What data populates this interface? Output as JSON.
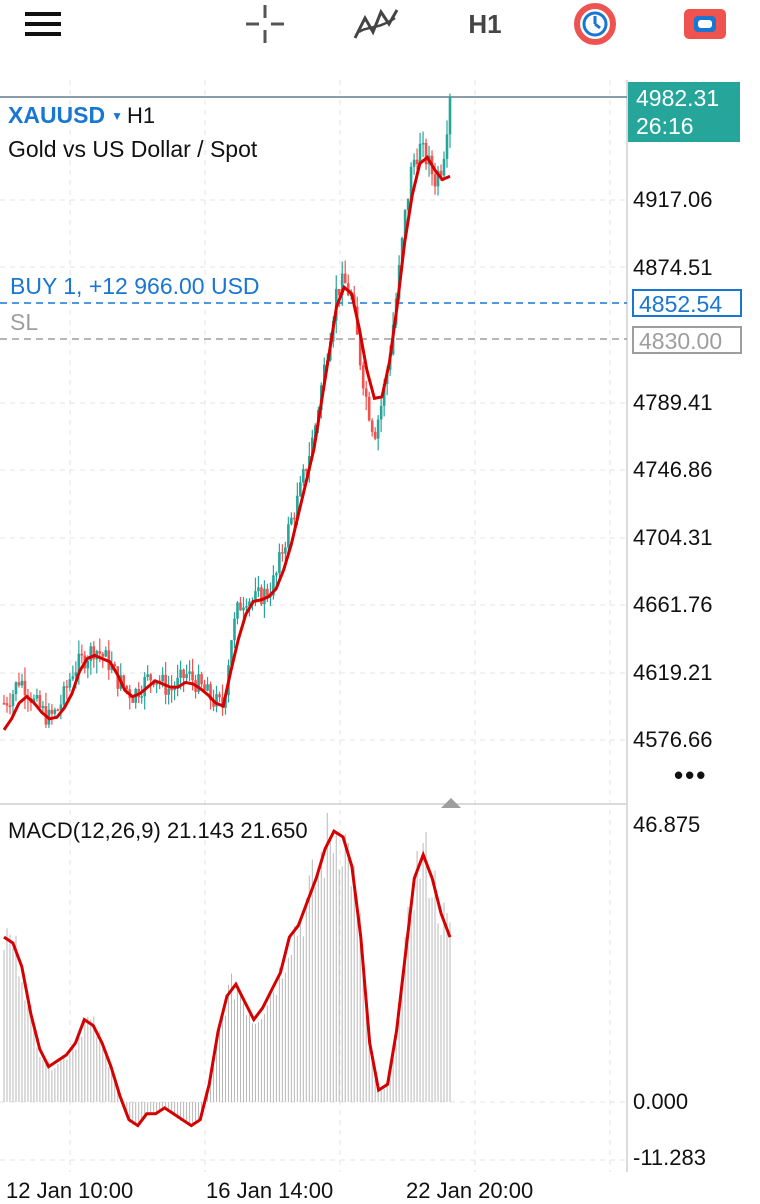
{
  "toolbar": {
    "menu_icon": "hamburger-menu-icon",
    "crosshair_icon": "crosshair-icon",
    "indicators_icon": "indicators-icon",
    "timeframe": "H1",
    "clock_icon": "timer-icon",
    "trade_icon": "trade-icon"
  },
  "header": {
    "symbol": "XAUUSD",
    "timeframe": "H1",
    "description": "Gold vs US Dollar / Spot"
  },
  "position": {
    "buy_label": "BUY 1,  +12 966.00 USD",
    "buy_price": "4852.54",
    "sl_label": "SL",
    "sl_price": "4830.00"
  },
  "current": {
    "price": "4982.31",
    "countdown": "26:16"
  },
  "price_axis": [
    "4917.06",
    "4874.51",
    "4789.41",
    "4746.86",
    "4704.31",
    "4661.76",
    "4619.21",
    "4576.66"
  ],
  "macd": {
    "title": "MACD(12,26,9) 21.143 21.650",
    "axis": [
      "46.875",
      "0.000",
      "-11.283"
    ]
  },
  "time_axis": [
    "12 Jan 10:00",
    "16 Jan 14:00",
    "22 Jan 20:00"
  ],
  "more_icon": "more-dots-icon",
  "colors": {
    "up": "#26a69a",
    "down": "#ef5350",
    "ma": "#d50000",
    "buy": "#1976d2",
    "sl": "#9e9e9e",
    "badge": "#26a69a"
  },
  "chart_data": {
    "type": "candlestick",
    "symbol": "XAUUSD",
    "interval": "H1",
    "ylim": [
      4550,
      4990
    ],
    "close_path": [
      4600,
      4605,
      4615,
      4610,
      4600,
      4595,
      4590,
      4595,
      4605,
      4620,
      4625,
      4630,
      4635,
      4630,
      4625,
      4615,
      4610,
      4605,
      4610,
      4615,
      4618,
      4612,
      4608,
      4612,
      4618,
      4615,
      4610,
      4605,
      4600,
      4598,
      4640,
      4660,
      4668,
      4664,
      4668,
      4670,
      4680,
      4700,
      4715,
      4730,
      4750,
      4770,
      4800,
      4830,
      4860,
      4865,
      4855,
      4820,
      4790,
      4770,
      4790,
      4820,
      4860,
      4905,
      4940,
      4950,
      4942,
      4930,
      4940,
      4982
    ],
    "ma_line": [
      4583,
      4590,
      4600,
      4604,
      4600,
      4594,
      4590,
      4591,
      4597,
      4606,
      4620,
      4628,
      4630,
      4628,
      4626,
      4618,
      4608,
      4604,
      4606,
      4610,
      4614,
      4612,
      4610,
      4610,
      4613,
      4612,
      4609,
      4605,
      4600,
      4598,
      4620,
      4640,
      4656,
      4664,
      4665,
      4667,
      4672,
      4684,
      4700,
      4720,
      4740,
      4760,
      4790,
      4820,
      4850,
      4862,
      4858,
      4836,
      4810,
      4792,
      4793,
      4815,
      4850,
      4890,
      4920,
      4940,
      4944,
      4936,
      4930,
      4932
    ],
    "macd_line": [
      28,
      27,
      23,
      15,
      9,
      6,
      7,
      8,
      10,
      14,
      13,
      10,
      6,
      1,
      -3,
      -4,
      -2,
      -2,
      -1,
      -2,
      -3,
      -4,
      -3,
      3,
      12,
      18,
      20,
      17,
      14,
      16,
      19,
      22,
      28,
      30,
      34,
      38,
      43,
      46,
      45,
      40,
      28,
      10,
      2,
      3,
      12,
      25,
      38,
      42,
      38,
      32,
      28
    ],
    "macd_ylim": [
      -11.283,
      46.875
    ]
  }
}
